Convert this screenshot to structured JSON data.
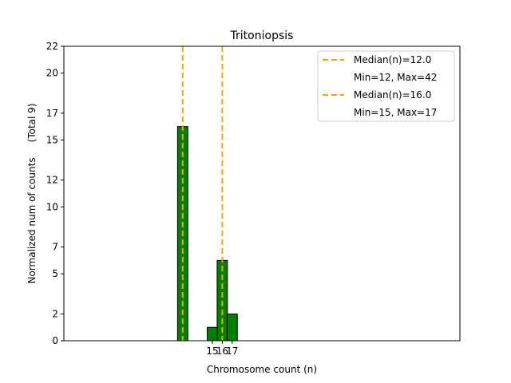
{
  "chart_data": {
    "type": "bar",
    "title": "Tritoniopsis",
    "xlabel": "Chromosome count (n)",
    "ylabel": "Normalized num of counts     (Total 9)",
    "ylim": [
      0,
      22
    ],
    "xlim": [
      0,
      40
    ],
    "yticks": [
      0,
      2,
      5,
      7,
      10,
      12,
      15,
      17,
      20,
      22
    ],
    "xticks": [
      15,
      16,
      17
    ],
    "bars": [
      {
        "x": 12,
        "value": 16.0
      },
      {
        "x": 15,
        "value": 1.0
      },
      {
        "x": 16,
        "value": 6.0
      },
      {
        "x": 17,
        "value": 2.0
      }
    ],
    "bar_color": "#008000",
    "median_lines": [
      {
        "x": 12.0,
        "label": "Median(n)=12.0",
        "range": "Min=12, Max=42"
      },
      {
        "x": 16.0,
        "label": "Median(n)=16.0",
        "range": "Min=15, Max=17"
      }
    ],
    "median_color": "#f0a800",
    "legend_position": "top-right",
    "grid": false
  }
}
